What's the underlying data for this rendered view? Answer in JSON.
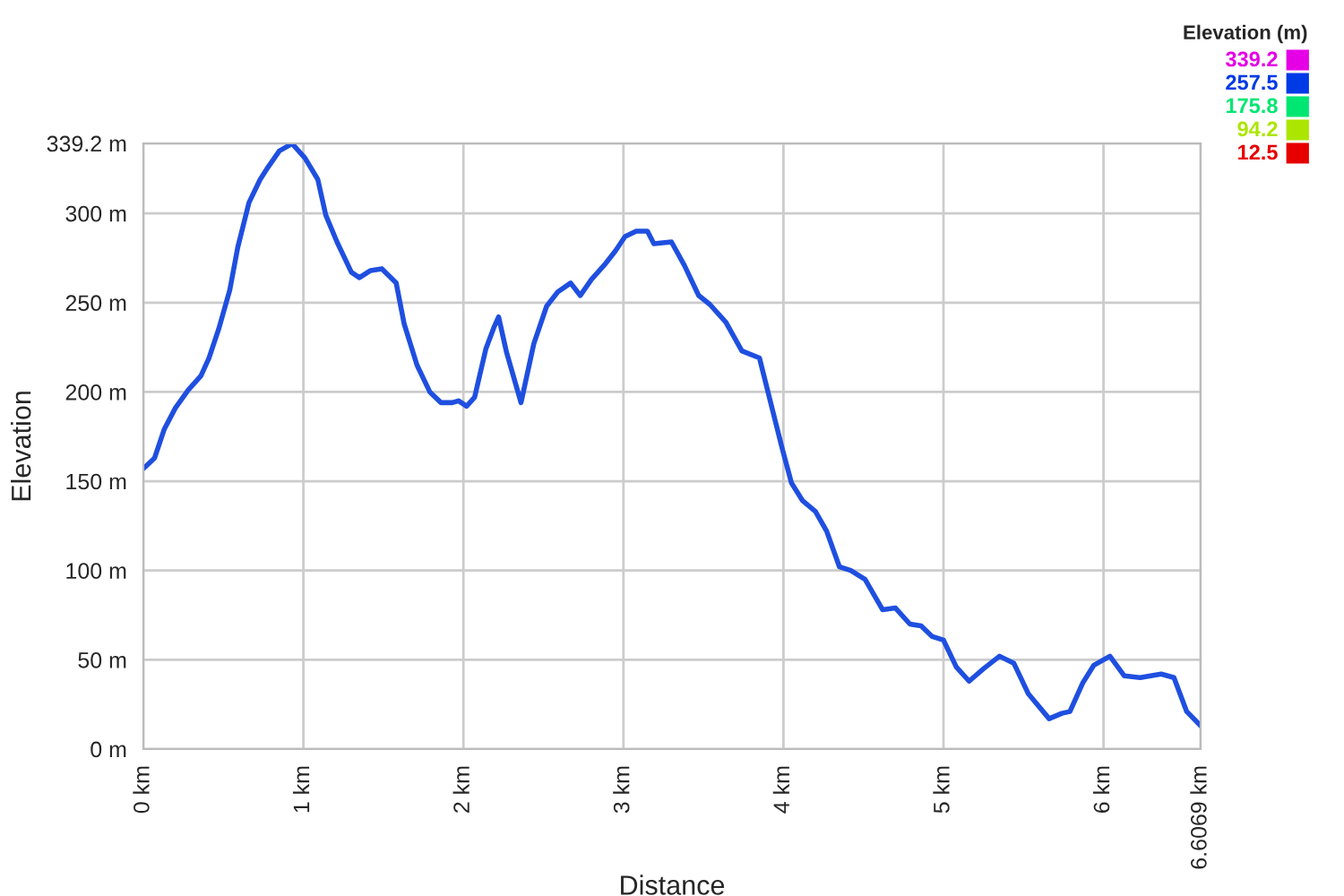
{
  "chart_data": {
    "type": "line",
    "xlabel": "Distance",
    "ylabel": "Elevation",
    "clabel": "Elevation (m)",
    "clim": [
      12.5,
      339.2
    ],
    "cticks": [
      339.2,
      257.5,
      175.8,
      94.2,
      12.5
    ],
    "xlim": [
      0,
      6.6069
    ],
    "ylim": [
      0,
      339.2
    ],
    "xticks": [
      {
        "value": 0,
        "label": "0 km"
      },
      {
        "value": 1,
        "label": "1 km"
      },
      {
        "value": 2,
        "label": "2 km"
      },
      {
        "value": 3,
        "label": "3 km"
      },
      {
        "value": 4,
        "label": "4 km"
      },
      {
        "value": 5,
        "label": "5 km"
      },
      {
        "value": 6,
        "label": "6 km"
      },
      {
        "value": 6.6069,
        "label": "6.6069 km"
      }
    ],
    "yticks": [
      {
        "value": 0,
        "label": "0 m"
      },
      {
        "value": 50,
        "label": "50 m"
      },
      {
        "value": 100,
        "label": "100 m"
      },
      {
        "value": 150,
        "label": "150 m"
      },
      {
        "value": 200,
        "label": "200 m"
      },
      {
        "value": 250,
        "label": "250 m"
      },
      {
        "value": 300,
        "label": "300 m"
      },
      {
        "value": 339.2,
        "label": "339.2 m"
      }
    ],
    "grid": true,
    "series": [
      {
        "color": "#1f4fe0",
        "x": [
          0,
          0.07,
          0.13,
          0.2,
          0.28,
          0.36,
          0.41,
          0.47,
          0.54,
          0.59,
          0.66,
          0.73,
          0.78,
          0.85,
          0.93,
          1.01,
          1.09,
          1.14,
          1.21,
          1.3,
          1.35,
          1.42,
          1.49,
          1.58,
          1.63,
          1.71,
          1.79,
          1.86,
          1.93,
          1.97,
          2.02,
          2.07,
          2.14,
          2.19,
          2.22,
          2.27,
          2.36,
          2.44,
          2.52,
          2.59,
          2.67,
          2.73,
          2.8,
          2.88,
          2.95,
          3.01,
          3.08,
          3.15,
          3.19,
          3.3,
          3.38,
          3.47,
          3.54,
          3.64,
          3.74,
          3.85,
          3.92,
          3.99,
          4.05,
          4.12,
          4.2,
          4.27,
          4.35,
          4.42,
          4.51,
          4.62,
          4.7,
          4.79,
          4.86,
          4.93,
          5.0,
          5.08,
          5.16,
          5.25,
          5.35,
          5.44,
          5.53,
          5.66,
          5.74,
          5.79,
          5.87,
          5.94,
          6.04,
          6.13,
          6.23,
          6.36,
          6.44,
          6.52,
          6.6069
        ],
        "values": [
          157,
          163,
          179,
          191,
          201,
          209,
          219,
          235,
          257,
          281,
          306,
          319,
          326,
          335,
          339,
          331,
          319,
          299,
          284,
          267,
          264,
          268,
          269,
          261,
          238,
          215,
          200,
          194,
          194,
          195,
          192,
          197,
          224,
          236,
          242,
          222,
          194,
          227,
          248,
          256,
          261,
          254,
          263,
          271,
          279,
          287,
          290,
          290,
          283,
          284,
          271,
          254,
          249,
          239,
          223,
          219,
          194,
          169,
          149,
          139,
          133,
          122,
          102,
          100,
          95,
          78,
          79,
          70,
          69,
          63,
          61,
          46,
          38,
          45,
          52,
          48,
          31,
          17,
          20,
          21,
          37,
          47,
          52,
          41,
          40,
          42,
          40,
          21,
          13
        ]
      }
    ]
  }
}
